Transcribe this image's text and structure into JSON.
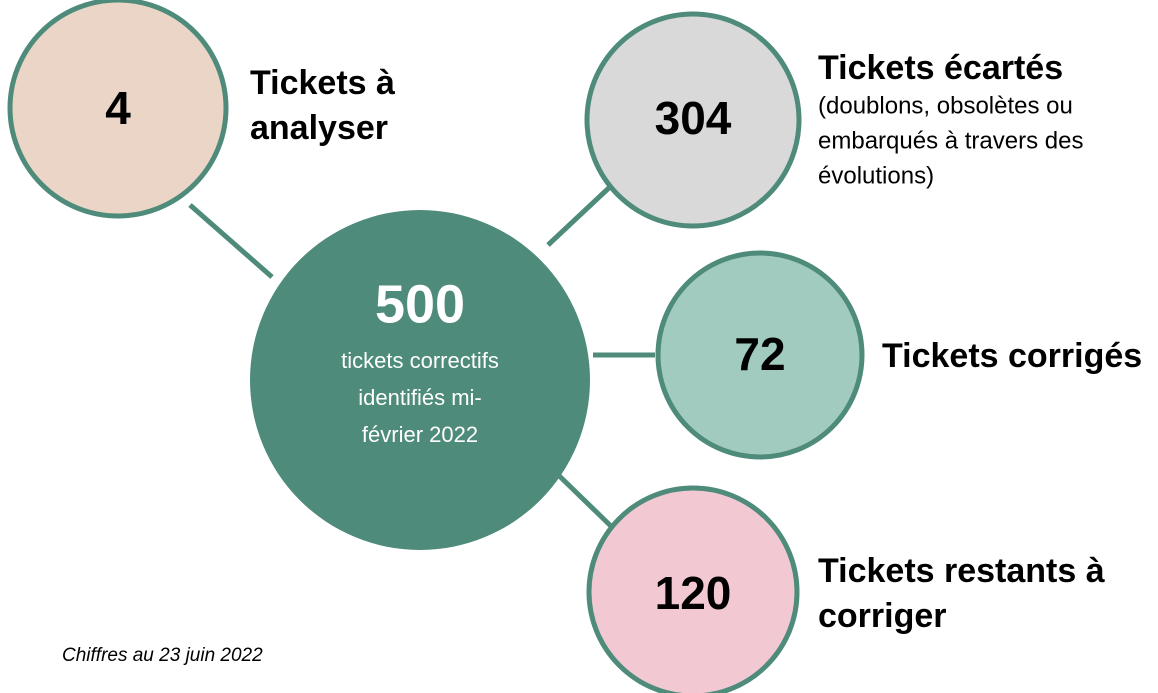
{
  "center": {
    "value": 500,
    "caption_lines": [
      "tickets correctifs",
      "identifiés mi-",
      "février 2022"
    ]
  },
  "nodes": [
    {
      "value": 4,
      "title_lines": [
        "Tickets à",
        "analyser"
      ]
    },
    {
      "value": 304,
      "title_lines": [
        "Tickets écartés"
      ],
      "note_lines": [
        "(doublons, obsolètes ou",
        "embarqués à travers des",
        "évolutions)"
      ]
    },
    {
      "value": 72,
      "title_lines": [
        "Tickets corrigés"
      ]
    },
    {
      "value": 120,
      "title_lines": [
        "Tickets restants à",
        "corriger"
      ]
    }
  ],
  "footnote": "Chiffres au 23 juin 2022"
}
